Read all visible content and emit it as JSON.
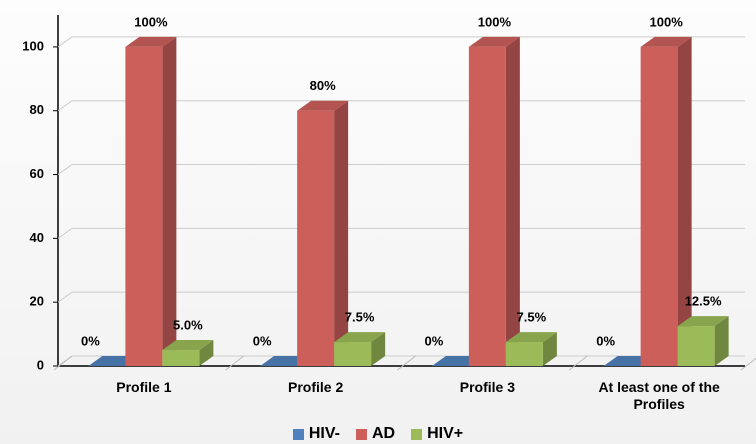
{
  "chart_data": {
    "type": "bar3d",
    "categories": [
      "Profile 1",
      "Profile 2",
      "Profile 3",
      "At least  one of the Profiles"
    ],
    "series": [
      {
        "name": "HIV-",
        "color": "#4f81bd",
        "values": [
          0,
          0,
          0,
          0
        ],
        "value_labels": [
          "0%",
          "0%",
          "0%",
          "0%"
        ]
      },
      {
        "name": "AD",
        "color": "#cd5f5b",
        "values": [
          100,
          80,
          100,
          100
        ],
        "value_labels": [
          "100%",
          "80%",
          "100%",
          "100%"
        ]
      },
      {
        "name": "HIV+",
        "color": "#9bbb59",
        "values": [
          5.0,
          7.5,
          7.5,
          12.5
        ],
        "value_labels": [
          "5.0%",
          "7.5%",
          "7.5%",
          "12.5%"
        ]
      }
    ],
    "ylim": [
      0,
      110
    ],
    "yticks": [
      0,
      20,
      40,
      60,
      80,
      100
    ],
    "grid": true,
    "legend": "bottom"
  }
}
